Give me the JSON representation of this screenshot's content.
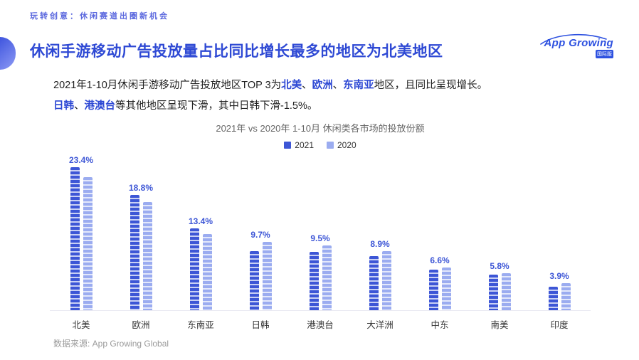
{
  "page": {
    "eyebrow": "玩转创意：休闲赛道出圈新机会",
    "title": "休闲手游移动广告投放量占比同比增长最多的地区为北美地区",
    "logo": {
      "text": "App Growing",
      "badge": "国际版"
    },
    "source": "数据来源: App Growing Global",
    "accent_color": "#2E49D4"
  },
  "paragraph": {
    "line1": [
      {
        "text": "2021年1-10月休闲手游移动广告投放地区TOP 3为",
        "highlight": false
      },
      {
        "text": "北美",
        "highlight": true
      },
      {
        "text": "、",
        "highlight": false
      },
      {
        "text": "欧洲",
        "highlight": true
      },
      {
        "text": "、",
        "highlight": false
      },
      {
        "text": "东南亚",
        "highlight": true
      },
      {
        "text": "地区，且同比呈现增长。",
        "highlight": false
      }
    ],
    "line2": [
      {
        "text": "日韩",
        "highlight": true
      },
      {
        "text": "、",
        "highlight": false
      },
      {
        "text": "港澳台",
        "highlight": true
      },
      {
        "text": "等其他地区呈现下滑，其中日韩下滑-1.5%。",
        "highlight": false
      }
    ]
  },
  "chart_data": {
    "type": "bar",
    "title": "2021年 vs 2020年 1-10月 休闲类各市场的投放份额",
    "categories": [
      "北美",
      "欧洲",
      "东南亚",
      "日韩",
      "港澳台",
      "大洋洲",
      "中东",
      "南美",
      "印度"
    ],
    "series": [
      {
        "name": "2021",
        "color": "#3D56D6",
        "values": [
          23.4,
          18.8,
          13.4,
          9.7,
          9.5,
          8.9,
          6.6,
          5.8,
          3.9
        ],
        "data_labels": [
          "23.4%",
          "18.8%",
          "13.4%",
          "9.7%",
          "9.5%",
          "8.9%",
          "6.6%",
          "5.8%",
          "3.9%"
        ]
      },
      {
        "name": "2020",
        "color": "#9BACF0",
        "values": [
          21.8,
          17.7,
          12.4,
          11.2,
          10.6,
          9.6,
          7.0,
          6.1,
          4.4
        ],
        "data_labels": []
      }
    ],
    "ylim": [
      0,
      25
    ],
    "grid": false,
    "legend_position": "top",
    "xlabel": "",
    "ylabel": ""
  }
}
